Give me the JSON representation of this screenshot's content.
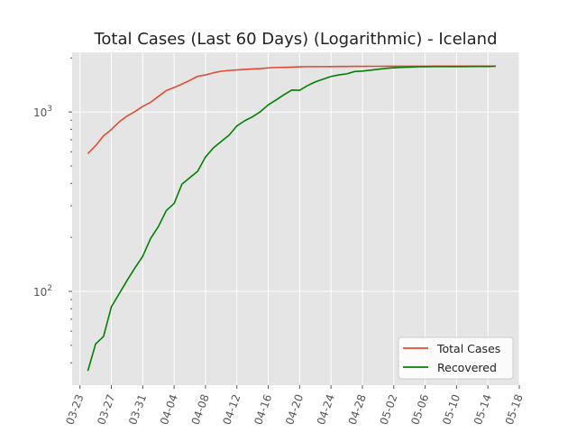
{
  "chart_data": {
    "type": "line",
    "title": "Total Cases (Last 60 Days) (Logarithmic) - Iceland",
    "xlabel": "",
    "ylabel": "",
    "yscale": "log",
    "xlim": [
      "2020-03-22",
      "2020-05-18"
    ],
    "ylim": [
      30,
      2150
    ],
    "grid": true,
    "legend_position": "bottom-right",
    "x_ticks": [
      "03-23",
      "03-27",
      "03-31",
      "04-04",
      "04-08",
      "04-12",
      "04-16",
      "04-20",
      "04-24",
      "04-28",
      "05-02",
      "05-06",
      "05-10",
      "05-14",
      "05-18"
    ],
    "y_ticks": [
      {
        "value": 100,
        "base": "10",
        "exp": "2"
      },
      {
        "value": 1000,
        "base": "10",
        "exp": "3"
      }
    ],
    "series": [
      {
        "name": "Total Cases",
        "color": "#E24A33",
        "points": [
          [
            "2020-03-24",
            586
          ],
          [
            "2020-03-25",
            649
          ],
          [
            "2020-03-26",
            736
          ],
          [
            "2020-03-27",
            798
          ],
          [
            "2020-03-28",
            880
          ],
          [
            "2020-03-29",
            949
          ],
          [
            "2020-03-30",
            1005
          ],
          [
            "2020-03-31",
            1074
          ],
          [
            "2020-04-01",
            1132
          ],
          [
            "2020-04-02",
            1220
          ],
          [
            "2020-04-03",
            1316
          ],
          [
            "2020-04-04",
            1369
          ],
          [
            "2020-04-05",
            1429
          ],
          [
            "2020-04-06",
            1500
          ],
          [
            "2020-04-07",
            1580
          ],
          [
            "2020-04-08",
            1608
          ],
          [
            "2020-04-09",
            1653
          ],
          [
            "2020-04-10",
            1686
          ],
          [
            "2020-04-11",
            1703
          ],
          [
            "2020-04-12",
            1715
          ],
          [
            "2020-04-13",
            1727
          ],
          [
            "2020-04-14",
            1736
          ],
          [
            "2020-04-15",
            1744
          ],
          [
            "2020-04-16",
            1761
          ],
          [
            "2020-04-17",
            1771
          ],
          [
            "2020-04-18",
            1773
          ],
          [
            "2020-04-19",
            1778
          ],
          [
            "2020-04-20",
            1785
          ],
          [
            "2020-04-21",
            1789
          ],
          [
            "2020-04-22",
            1789
          ],
          [
            "2020-04-23",
            1789
          ],
          [
            "2020-04-24",
            1790
          ],
          [
            "2020-04-25",
            1792
          ],
          [
            "2020-04-26",
            1792
          ],
          [
            "2020-04-27",
            1795
          ],
          [
            "2020-04-28",
            1795
          ],
          [
            "2020-04-29",
            1797
          ],
          [
            "2020-04-30",
            1797
          ],
          [
            "2020-05-01",
            1798
          ],
          [
            "2020-05-02",
            1799
          ],
          [
            "2020-05-03",
            1799
          ],
          [
            "2020-05-04",
            1799
          ],
          [
            "2020-05-05",
            1799
          ],
          [
            "2020-05-06",
            1799
          ],
          [
            "2020-05-07",
            1801
          ],
          [
            "2020-05-08",
            1801
          ],
          [
            "2020-05-09",
            1801
          ],
          [
            "2020-05-10",
            1801
          ],
          [
            "2020-05-11",
            1801
          ],
          [
            "2020-05-12",
            1802
          ],
          [
            "2020-05-13",
            1802
          ],
          [
            "2020-05-14",
            1802
          ],
          [
            "2020-05-15",
            1802
          ]
        ]
      },
      {
        "name": "Recovered",
        "color": "#008000",
        "points": [
          [
            "2020-03-24",
            36
          ],
          [
            "2020-03-25",
            51
          ],
          [
            "2020-03-26",
            56
          ],
          [
            "2020-03-27",
            82
          ],
          [
            "2020-03-28",
            97
          ],
          [
            "2020-03-29",
            115
          ],
          [
            "2020-03-30",
            135
          ],
          [
            "2020-03-31",
            157
          ],
          [
            "2020-04-01",
            197
          ],
          [
            "2020-04-02",
            230
          ],
          [
            "2020-04-03",
            282
          ],
          [
            "2020-04-04",
            309
          ],
          [
            "2020-04-05",
            396
          ],
          [
            "2020-04-06",
            430
          ],
          [
            "2020-04-07",
            467
          ],
          [
            "2020-04-08",
            561
          ],
          [
            "2020-04-09",
            630
          ],
          [
            "2020-04-10",
            684
          ],
          [
            "2020-04-11",
            742
          ],
          [
            "2020-04-12",
            836
          ],
          [
            "2020-04-13",
            893
          ],
          [
            "2020-04-14",
            940
          ],
          [
            "2020-04-15",
            1004
          ],
          [
            "2020-04-16",
            1096
          ],
          [
            "2020-04-17",
            1167
          ],
          [
            "2020-04-18",
            1247
          ],
          [
            "2020-04-19",
            1325
          ],
          [
            "2020-04-20",
            1321
          ],
          [
            "2020-04-21",
            1402
          ],
          [
            "2020-04-22",
            1471
          ],
          [
            "2020-04-23",
            1524
          ],
          [
            "2020-04-24",
            1577
          ],
          [
            "2020-04-25",
            1608
          ],
          [
            "2020-04-26",
            1631
          ],
          [
            "2020-04-27",
            1680
          ],
          [
            "2020-04-28",
            1690
          ],
          [
            "2020-04-29",
            1710
          ],
          [
            "2020-04-30",
            1730
          ],
          [
            "2020-05-01",
            1749
          ],
          [
            "2020-05-02",
            1763
          ],
          [
            "2020-05-03",
            1772
          ],
          [
            "2020-05-04",
            1778
          ],
          [
            "2020-05-05",
            1787
          ],
          [
            "2020-05-06",
            1787
          ],
          [
            "2020-05-07",
            1789
          ],
          [
            "2020-05-08",
            1789
          ],
          [
            "2020-05-09",
            1790
          ],
          [
            "2020-05-10",
            1791
          ],
          [
            "2020-05-11",
            1791
          ],
          [
            "2020-05-12",
            1792
          ],
          [
            "2020-05-13",
            1794
          ],
          [
            "2020-05-14",
            1794
          ],
          [
            "2020-05-15",
            1797
          ]
        ]
      }
    ],
    "colors": {
      "background": "#E5E5E5",
      "grid": "#FFFFFF",
      "figure": "#FFFFFF",
      "tick": "#555555",
      "legend_background": "#FFFFFF",
      "legend_border": "#CCCCCC"
    }
  }
}
